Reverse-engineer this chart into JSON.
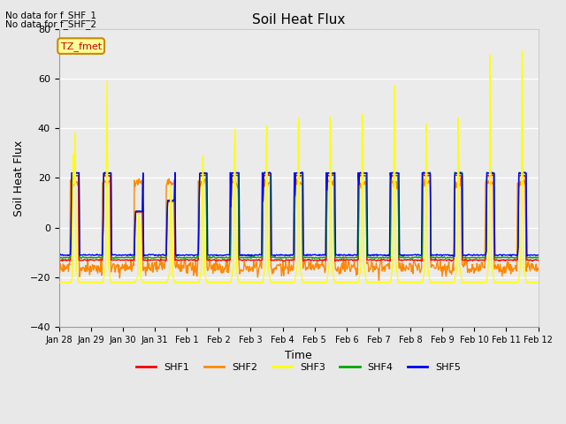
{
  "title": "Soil Heat Flux",
  "ylabel": "Soil Heat Flux",
  "xlabel": "Time",
  "ylim": [
    -40,
    80
  ],
  "yticks": [
    -40,
    -20,
    0,
    20,
    40,
    60,
    80
  ],
  "no_data_text": [
    "No data for f_SHF_1",
    "No data for f_SHF_2"
  ],
  "tz_label": "TZ_fmet",
  "series_colors": {
    "SHF1": "#ff0000",
    "SHF2": "#ff8800",
    "SHF3": "#ffff00",
    "SHF4": "#00aa00",
    "SHF5": "#0000ff"
  },
  "bg_color": "#e8e8e8",
  "plot_bg_color": "#ebebeb",
  "xtick_labels": [
    "Jan 28",
    "Jan 29",
    "Jan 30",
    "Jan 31",
    "Feb 1",
    "Feb 2",
    "Feb 3",
    "Feb 4",
    "Feb 5",
    "Feb 6",
    "Feb 7",
    "Feb 8",
    "Feb 9",
    "Feb 10",
    "Feb 11",
    "Feb 12"
  ],
  "xtick_positions": [
    0,
    1,
    2,
    3,
    4,
    5,
    6,
    7,
    8,
    9,
    10,
    11,
    12,
    13,
    14,
    15
  ]
}
